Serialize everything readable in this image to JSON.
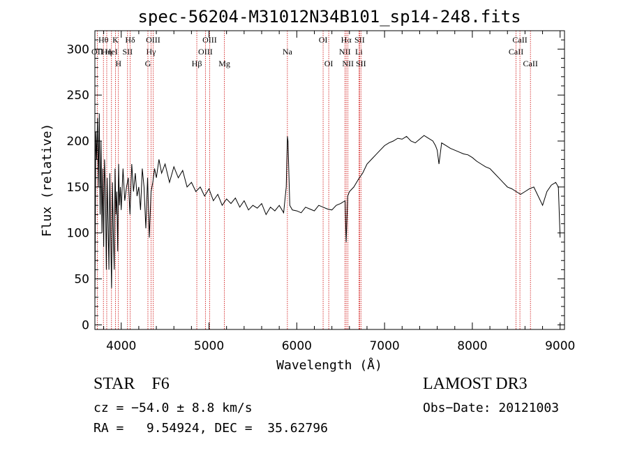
{
  "chart_data": {
    "type": "line",
    "title": "spec-56204-M31012N34B101_sp14-248.fits",
    "xlabel": "Wavelength (Å)",
    "ylabel": "Flux (relative)",
    "xlim": [
      3700,
      9050
    ],
    "ylim": [
      -5,
      320
    ],
    "xticks": [
      4000,
      5000,
      6000,
      7000,
      8000,
      9000
    ],
    "yticks": [
      0,
      50,
      100,
      150,
      200,
      250,
      300
    ],
    "series": [
      {
        "name": "flux",
        "color": "#000000",
        "x": [
          3700,
          3710,
          3720,
          3730,
          3740,
          3750,
          3760,
          3770,
          3780,
          3790,
          3800,
          3810,
          3820,
          3830,
          3840,
          3850,
          3860,
          3870,
          3880,
          3890,
          3900,
          3910,
          3920,
          3930,
          3940,
          3950,
          3960,
          3970,
          3980,
          3990,
          4000,
          4020,
          4040,
          4060,
          4080,
          4100,
          4120,
          4140,
          4160,
          4180,
          4200,
          4220,
          4240,
          4260,
          4280,
          4300,
          4320,
          4340,
          4360,
          4380,
          4400,
          4430,
          4460,
          4500,
          4550,
          4600,
          4650,
          4700,
          4750,
          4800,
          4850,
          4900,
          4950,
          5000,
          5050,
          5100,
          5150,
          5200,
          5250,
          5300,
          5350,
          5400,
          5450,
          5500,
          5550,
          5600,
          5650,
          5700,
          5750,
          5800,
          5850,
          5880,
          5893,
          5900,
          5920,
          5950,
          6000,
          6050,
          6100,
          6150,
          6200,
          6250,
          6300,
          6350,
          6400,
          6450,
          6500,
          6550,
          6563,
          6580,
          6600,
          6650,
          6700,
          6750,
          6800,
          6850,
          6900,
          6950,
          7000,
          7050,
          7100,
          7150,
          7200,
          7250,
          7300,
          7350,
          7400,
          7450,
          7500,
          7550,
          7580,
          7600,
          7620,
          7650,
          7700,
          7750,
          7800,
          7850,
          7900,
          7950,
          8000,
          8050,
          8100,
          8150,
          8200,
          8250,
          8300,
          8350,
          8400,
          8450,
          8500,
          8550,
          8600,
          8650,
          8700,
          8750,
          8800,
          8850,
          8900,
          8950,
          8980,
          9000
        ],
        "y": [
          20,
          210,
          180,
          225,
          150,
          230,
          120,
          200,
          100,
          170,
          85,
          180,
          150,
          60,
          160,
          110,
          60,
          165,
          95,
          40,
          155,
          100,
          60,
          170,
          120,
          145,
          80,
          175,
          130,
          150,
          125,
          170,
          135,
          150,
          160,
          120,
          175,
          145,
          165,
          140,
          150,
          125,
          170,
          150,
          105,
          160,
          95,
          145,
          155,
          170,
          160,
          180,
          165,
          175,
          155,
          172,
          160,
          168,
          150,
          155,
          145,
          150,
          140,
          148,
          135,
          142,
          130,
          137,
          132,
          138,
          128,
          135,
          125,
          130,
          127,
          132,
          120,
          128,
          124,
          130,
          122,
          150,
          205,
          200,
          130,
          125,
          124,
          122,
          128,
          126,
          124,
          130,
          128,
          126,
          125,
          130,
          132,
          135,
          90,
          140,
          145,
          150,
          158,
          165,
          175,
          180,
          185,
          190,
          195,
          198,
          200,
          203,
          202,
          205,
          200,
          198,
          202,
          206,
          203,
          200,
          195,
          190,
          175,
          198,
          195,
          192,
          190,
          188,
          186,
          185,
          182,
          178,
          175,
          172,
          170,
          165,
          160,
          155,
          150,
          148,
          145,
          142,
          145,
          148,
          150,
          140,
          130,
          145,
          152,
          155,
          150,
          95
        ]
      }
    ],
    "line_markers": [
      {
        "label": "Hθ",
        "wave": 3797,
        "row": 1
      },
      {
        "label": "OII",
        "wave": 3727,
        "row": 2
      },
      {
        "label": "Hη",
        "wave": 3835,
        "row": 2
      },
      {
        "label": "HeI",
        "wave": 3889,
        "row": 2
      },
      {
        "label": "K",
        "wave": 3934,
        "row": 1
      },
      {
        "label": "H",
        "wave": 3968,
        "row": 3
      },
      {
        "label": "SII",
        "wave": 4072,
        "row": 2
      },
      {
        "label": "Hδ",
        "wave": 4102,
        "row": 1
      },
      {
        "label": "Hγ",
        "wave": 4340,
        "row": 2
      },
      {
        "label": "G",
        "wave": 4304,
        "row": 3
      },
      {
        "label": "OIII",
        "wave": 4363,
        "row": 1
      },
      {
        "label": "Hβ",
        "wave": 4861,
        "row": 3
      },
      {
        "label": "OIII",
        "wave": 4959,
        "row": 2
      },
      {
        "label": "OIII",
        "wave": 5007,
        "row": 1
      },
      {
        "label": "Mg",
        "wave": 5175,
        "row": 3
      },
      {
        "label": "Na",
        "wave": 5893,
        "row": 2
      },
      {
        "label": "OI",
        "wave": 6300,
        "row": 1
      },
      {
        "label": "OI",
        "wave": 6364,
        "row": 3
      },
      {
        "label": "NII",
        "wave": 6548,
        "row": 2
      },
      {
        "label": "Hα",
        "wave": 6563,
        "row": 1
      },
      {
        "label": "NII",
        "wave": 6583,
        "row": 3
      },
      {
        "label": "SII",
        "wave": 6716,
        "row": 1
      },
      {
        "label": "Li",
        "wave": 6708,
        "row": 2
      },
      {
        "label": "SII",
        "wave": 6731,
        "row": 3
      },
      {
        "label": "CaII",
        "wave": 8498,
        "row": 2
      },
      {
        "label": "CaII",
        "wave": 8542,
        "row": 1
      },
      {
        "label": "CaII",
        "wave": 8662,
        "row": 3
      }
    ],
    "marker_color": "#cc0000"
  },
  "info": {
    "object_class": "STAR    F6",
    "survey": "LAMOST DR3",
    "cz": "cz = −54.0 ± 8.8 km/s",
    "obs_date": "Obs−Date: 20121003",
    "radec": "RA =   9.54924, DEC =  35.62796"
  }
}
